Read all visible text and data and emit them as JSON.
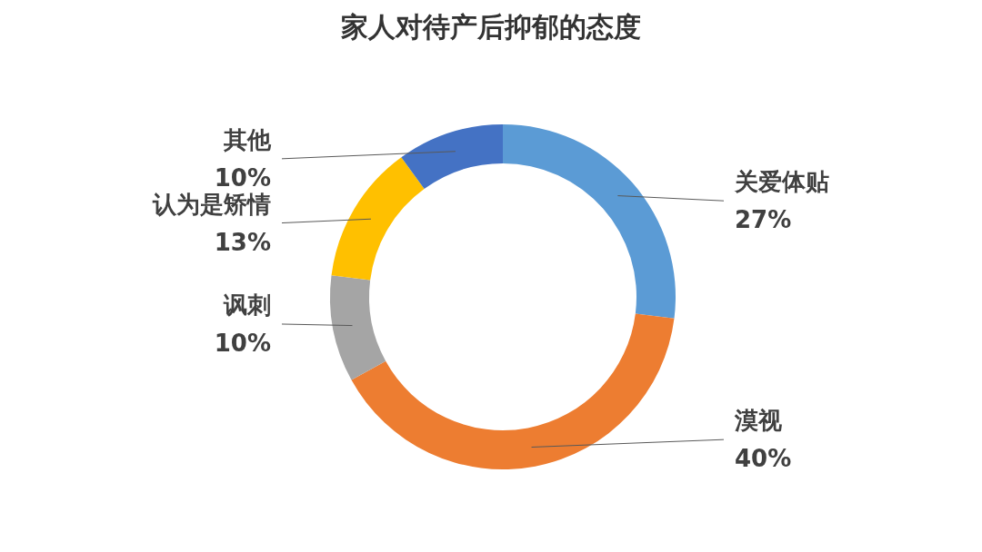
{
  "chart_data": {
    "type": "donut",
    "title": "家人对待产后抑郁的态度",
    "categories": [
      "关爱体贴",
      "漠视",
      "讽刺",
      "认为是矫情",
      "其他"
    ],
    "values": [
      27,
      40,
      10,
      13,
      10
    ],
    "colors": [
      "#5b9bd5",
      "#ed7d31",
      "#a5a5a5",
      "#ffc000",
      "#4472c4"
    ],
    "value_labels": [
      "27%",
      "40%",
      "10%",
      "13%",
      "10%"
    ]
  }
}
